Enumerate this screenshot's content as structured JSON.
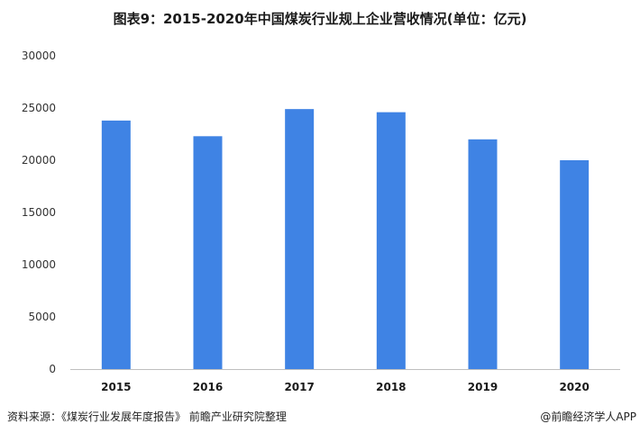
{
  "chart_data": {
    "type": "bar",
    "title": "图表9：2015-2020年中国煤炭行业规上企业营收情况(单位：亿元)",
    "xlabel": "",
    "ylabel": "",
    "categories": [
      "2015",
      "2016",
      "2017",
      "2018",
      "2019",
      "2020"
    ],
    "values": [
      23800,
      22300,
      24900,
      24600,
      22000,
      20000
    ],
    "ylim": [
      0,
      30000
    ],
    "yticks": [
      "0",
      "5000",
      "10000",
      "15000",
      "20000",
      "25000",
      "30000"
    ],
    "grid": false,
    "legend": "none",
    "bar_color": "#3f83e4",
    "axis_color": "#bfbfbf"
  },
  "footer": {
    "source": "资料来源：《煤炭行业发展年度报告》 前瞻产业研究院整理",
    "brand": "@前瞻经济学人APP"
  }
}
